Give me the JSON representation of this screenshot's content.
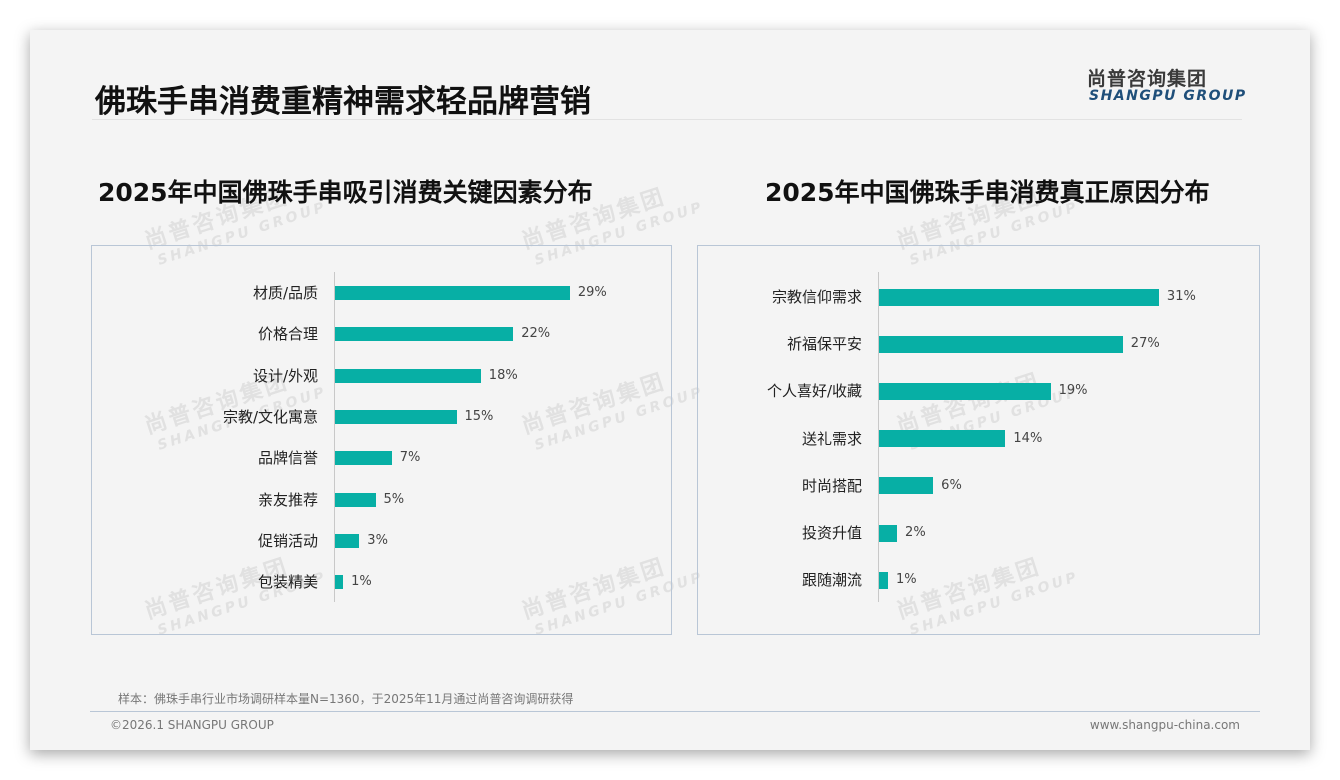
{
  "header": {
    "title": "佛珠手串消费重精神需求轻品牌营销",
    "logo_cn": "尚普咨询集团",
    "logo_en": "SHANGPU GROUP"
  },
  "watermark": {
    "cn": "尚普咨询集团",
    "en": "SHANGPU GROUP"
  },
  "colors": {
    "bar": "#07afa5",
    "box_border": "#b9c6d6",
    "logo_en": "#1f4f7a"
  },
  "chart_data": [
    {
      "type": "bar",
      "orientation": "horizontal",
      "title": "2025年中国佛珠手串吸引消费关键因素分布",
      "categories": [
        "材质/品质",
        "价格合理",
        "设计/外观",
        "宗教/文化寓意",
        "品牌信誉",
        "亲友推荐",
        "促销活动",
        "包装精美"
      ],
      "values": [
        29,
        22,
        18,
        15,
        7,
        5,
        3,
        1
      ],
      "labels": [
        "29%",
        "22%",
        "18%",
        "15%",
        "7%",
        "5%",
        "3%",
        "1%"
      ],
      "xlabel": "",
      "ylabel": "",
      "unit": "%",
      "grid": false,
      "legend": "none"
    },
    {
      "type": "bar",
      "orientation": "horizontal",
      "title": "2025年中国佛珠手串消费真正原因分布",
      "categories": [
        "宗教信仰需求",
        "祈福保平安",
        "个人喜好/收藏",
        "送礼需求",
        "时尚搭配",
        "投资升值",
        "跟随潮流"
      ],
      "values": [
        31,
        27,
        19,
        14,
        6,
        2,
        1
      ],
      "labels": [
        "31%",
        "27%",
        "19%",
        "14%",
        "6%",
        "2%",
        "1%"
      ],
      "xlabel": "",
      "ylabel": "",
      "unit": "%",
      "grid": false,
      "legend": "none"
    }
  ],
  "footer": {
    "note": "样本：佛珠手串行业市场调研样本量N=1360，于2025年11月通过尚普咨询调研获得",
    "copyright": "©2026.1 SHANGPU GROUP",
    "website": "www.shangpu-china.com"
  }
}
